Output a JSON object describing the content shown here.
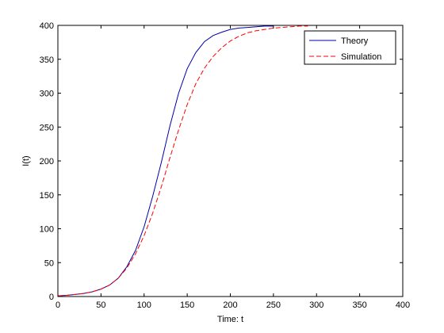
{
  "chart_data": {
    "type": "line",
    "title": "",
    "xlabel": "Time: t",
    "ylabel": "I(t)",
    "xlim": [
      0,
      400
    ],
    "ylim": [
      0,
      400
    ],
    "xticks": [
      0,
      50,
      100,
      150,
      200,
      250,
      300,
      350,
      400
    ],
    "yticks": [
      0,
      50,
      100,
      150,
      200,
      250,
      300,
      350,
      400
    ],
    "grid": false,
    "legend_position": "top-right",
    "series": [
      {
        "name": "Theory",
        "color": "#0000aa",
        "style": "solid",
        "x": [
          0,
          10,
          20,
          30,
          40,
          50,
          60,
          70,
          80,
          90,
          100,
          110,
          120,
          130,
          140,
          150,
          160,
          170,
          180,
          190,
          200,
          210,
          220,
          230,
          240,
          250
        ],
        "y": [
          1,
          1.8,
          3,
          4.6,
          7,
          11,
          17,
          27,
          44,
          68,
          103,
          148,
          198,
          252,
          300,
          336,
          360,
          376,
          385,
          390,
          394,
          396,
          397,
          398,
          399,
          399
        ]
      },
      {
        "name": "Simulation",
        "color": "#ff0000",
        "style": "dashed",
        "x": [
          0,
          10,
          20,
          30,
          40,
          50,
          60,
          70,
          80,
          90,
          100,
          110,
          120,
          130,
          140,
          150,
          160,
          170,
          180,
          190,
          200,
          210,
          220,
          230,
          240,
          250,
          260,
          270,
          280,
          290
        ],
        "y": [
          1,
          1.8,
          3,
          4.6,
          7,
          11,
          17,
          27,
          42,
          63,
          90,
          123,
          162,
          205,
          246,
          283,
          314,
          337,
          354,
          367,
          377,
          384,
          389,
          392,
          394,
          396,
          397,
          398,
          399,
          399
        ]
      }
    ]
  }
}
